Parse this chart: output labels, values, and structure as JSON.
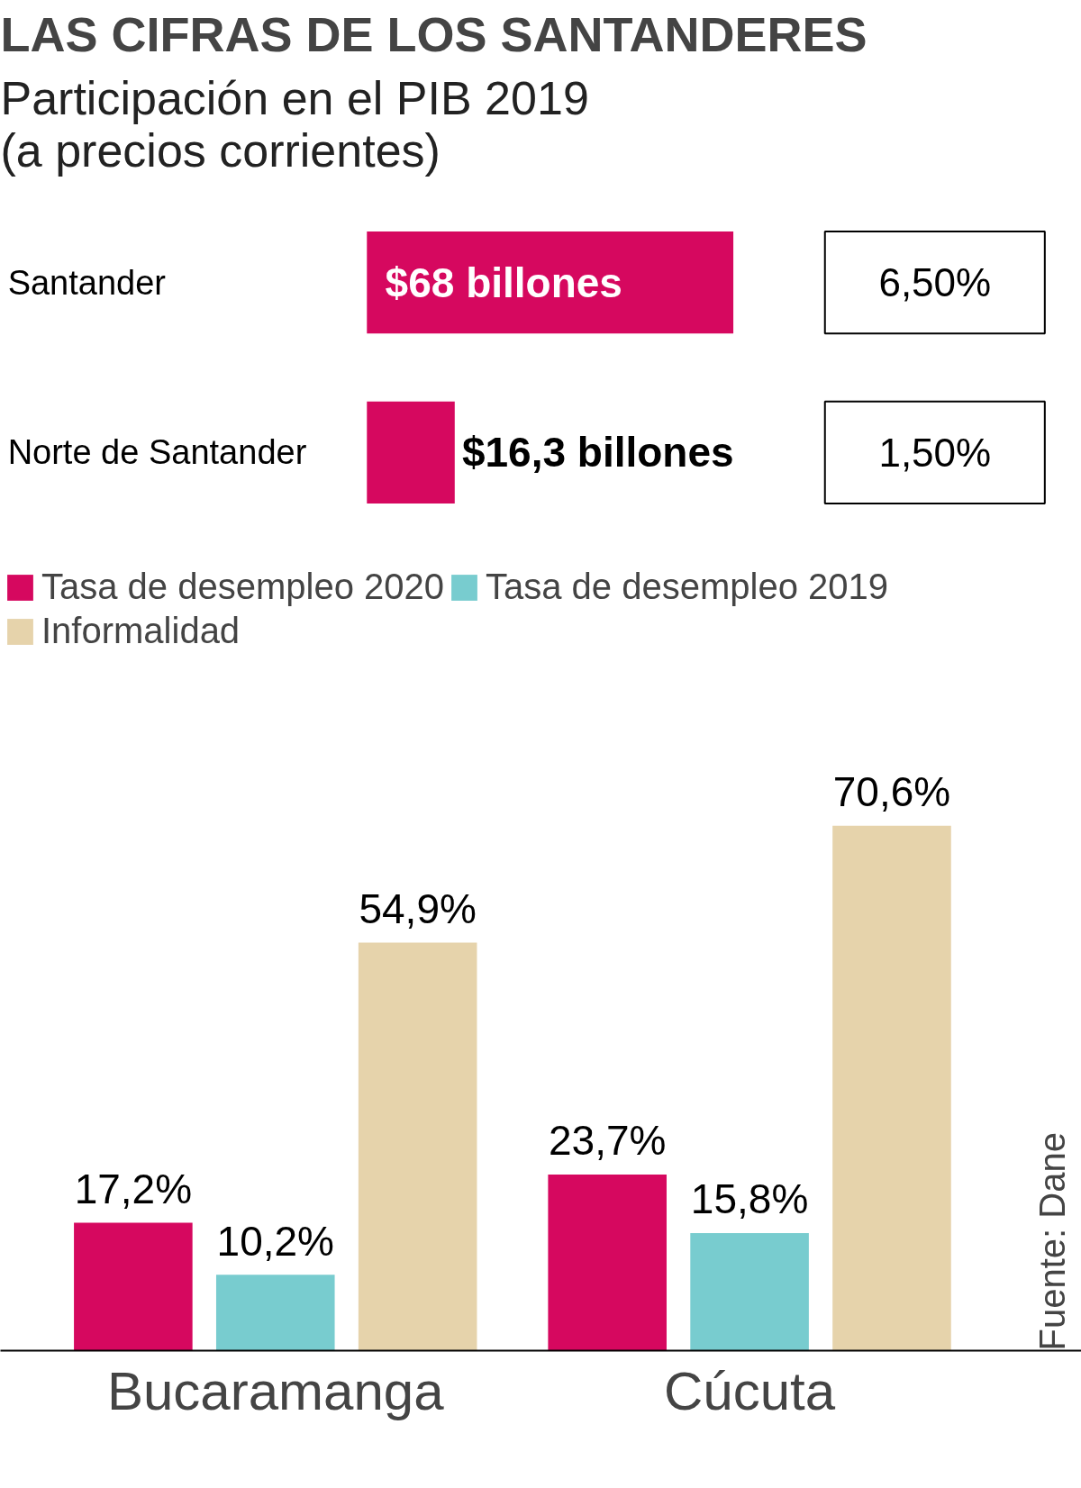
{
  "chart_data": [
    {
      "type": "bar",
      "orientation": "horizontal",
      "title": "LAS CIFRAS DE LOS SANTANDERES",
      "subtitle": "Participación en el PIB 2019\n(a precios corrientes)",
      "categories": [
        "Santander",
        "Norte de Santander"
      ],
      "values": [
        68,
        16.3
      ],
      "value_labels": [
        "$68 billones",
        "$16,3 billones"
      ],
      "color": "#d6085f",
      "annotations": [
        "6,50%",
        "1,50%"
      ]
    },
    {
      "type": "bar",
      "categories": [
        "Bucaramanga",
        "Cúcuta"
      ],
      "legend": "top",
      "series": [
        {
          "name": "Tasa de desempleo 2020",
          "color": "#d6085f",
          "values": [
            17.2,
            23.7
          ],
          "value_labels": [
            "17,2%",
            "23,7%"
          ]
        },
        {
          "name": "Tasa de desempleo 2019",
          "color": "#78cccf",
          "values": [
            10.2,
            15.8
          ],
          "value_labels": [
            "10,2%",
            "15,8%"
          ]
        },
        {
          "name": "Informalidad",
          "color": "#e6d3ab",
          "values": [
            54.9,
            70.6
          ],
          "value_labels": [
            "54,9%",
            "70,6%"
          ]
        }
      ],
      "annotations": [
        "Fuente: Dane"
      ]
    }
  ]
}
